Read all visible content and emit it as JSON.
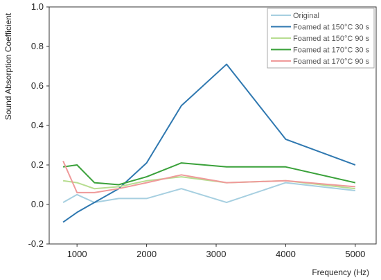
{
  "chart_data": {
    "type": "line",
    "title": "",
    "xlabel": "Frequency (Hz)",
    "ylabel": "Sound Absorption Coefficient",
    "xlim": [
      600,
      5300
    ],
    "ylim": [
      -0.2,
      1.0
    ],
    "xticks": [
      1000,
      2000,
      3000,
      4000,
      5000
    ],
    "xtick_labels": [
      "1000",
      "2000",
      "3000",
      "4000",
      "5000"
    ],
    "yticks": [
      -0.2,
      0.0,
      0.2,
      0.4,
      0.6,
      0.8,
      1.0
    ],
    "ytick_labels": [
      "-0.2",
      "0.0",
      "0.2",
      "0.4",
      "0.6",
      "0.8",
      "1.0"
    ],
    "grid": false,
    "legend_position": "top-right",
    "series": [
      {
        "name": "Original",
        "color": "#a6cfe0",
        "x": [
          800,
          1000,
          1250,
          1600,
          2000,
          2500,
          3150,
          4000,
          5000
        ],
        "y": [
          0.01,
          0.05,
          0.01,
          0.03,
          0.03,
          0.08,
          0.01,
          0.11,
          0.07
        ]
      },
      {
        "name": "Foamed at 150°C 30 s",
        "color": "#2f78b0",
        "x": [
          800,
          1000,
          1250,
          1600,
          2000,
          2500,
          3150,
          4000,
          5000
        ],
        "y": [
          -0.09,
          -0.04,
          0.01,
          0.08,
          0.21,
          0.5,
          0.71,
          0.33,
          0.2
        ]
      },
      {
        "name": "Foamed at 150°C 90 s",
        "color": "#b7dd90",
        "x": [
          800,
          1000,
          1250,
          1600,
          2000,
          2500,
          3150,
          4000,
          5000
        ],
        "y": [
          0.12,
          0.11,
          0.08,
          0.09,
          0.12,
          0.14,
          0.11,
          0.12,
          0.08
        ]
      },
      {
        "name": "Foamed at 170°C 30 s",
        "color": "#3aa13a",
        "x": [
          800,
          1000,
          1250,
          1600,
          2000,
          2500,
          3150,
          4000,
          5000
        ],
        "y": [
          0.19,
          0.2,
          0.11,
          0.1,
          0.14,
          0.21,
          0.19,
          0.19,
          0.11
        ]
      },
      {
        "name": "Foamed at 170°C 90 s",
        "color": "#ef9a9a",
        "x": [
          800,
          1000,
          1250,
          1600,
          2000,
          2500,
          3150,
          4000,
          5000
        ],
        "y": [
          0.22,
          0.06,
          0.06,
          0.08,
          0.11,
          0.15,
          0.11,
          0.12,
          0.09
        ]
      }
    ]
  }
}
